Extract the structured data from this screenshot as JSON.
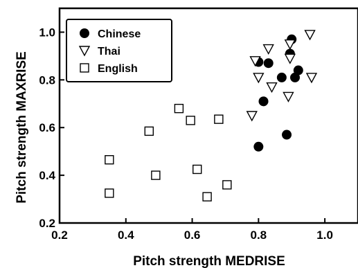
{
  "chart_data": {
    "type": "scatter",
    "title": "",
    "xlabel": "Pitch strength MEDRISE",
    "ylabel": "Pitch strength MAXRISE",
    "xlim": [
      0.2,
      1.1
    ],
    "ylim": [
      0.2,
      1.1
    ],
    "xticks": [
      "0.2",
      "0.4",
      "0.6",
      "0.8",
      "1.0"
    ],
    "yticks": [
      "0.2",
      "0.4",
      "0.6",
      "0.8",
      "1.0"
    ],
    "grid": false,
    "legend_position": "top-left",
    "series": [
      {
        "name": "Chinese",
        "marker": "filled-circle",
        "color": "#000000",
        "points": [
          {
            "x": 0.8,
            "y": 0.875
          },
          {
            "x": 0.83,
            "y": 0.87
          },
          {
            "x": 0.87,
            "y": 0.81
          },
          {
            "x": 0.895,
            "y": 0.91
          },
          {
            "x": 0.9,
            "y": 0.97
          },
          {
            "x": 0.91,
            "y": 0.81
          },
          {
            "x": 0.92,
            "y": 0.84
          },
          {
            "x": 0.815,
            "y": 0.71
          },
          {
            "x": 0.8,
            "y": 0.52
          },
          {
            "x": 0.885,
            "y": 0.57
          }
        ]
      },
      {
        "name": "Thai",
        "marker": "open-triangle-down",
        "color": "#000000",
        "points": [
          {
            "x": 0.79,
            "y": 0.88
          },
          {
            "x": 0.83,
            "y": 0.93
          },
          {
            "x": 0.895,
            "y": 0.95
          },
          {
            "x": 0.955,
            "y": 0.99
          },
          {
            "x": 0.895,
            "y": 0.89
          },
          {
            "x": 0.8,
            "y": 0.81
          },
          {
            "x": 0.84,
            "y": 0.77
          },
          {
            "x": 0.96,
            "y": 0.81
          },
          {
            "x": 0.89,
            "y": 0.73
          },
          {
            "x": 0.78,
            "y": 0.65
          }
        ]
      },
      {
        "name": "English",
        "marker": "open-square",
        "color": "#000000",
        "points": [
          {
            "x": 0.56,
            "y": 0.68
          },
          {
            "x": 0.595,
            "y": 0.63
          },
          {
            "x": 0.68,
            "y": 0.635
          },
          {
            "x": 0.47,
            "y": 0.585
          },
          {
            "x": 0.35,
            "y": 0.465
          },
          {
            "x": 0.49,
            "y": 0.4
          },
          {
            "x": 0.615,
            "y": 0.425
          },
          {
            "x": 0.35,
            "y": 0.325
          },
          {
            "x": 0.645,
            "y": 0.31
          },
          {
            "x": 0.705,
            "y": 0.36
          }
        ]
      }
    ]
  }
}
